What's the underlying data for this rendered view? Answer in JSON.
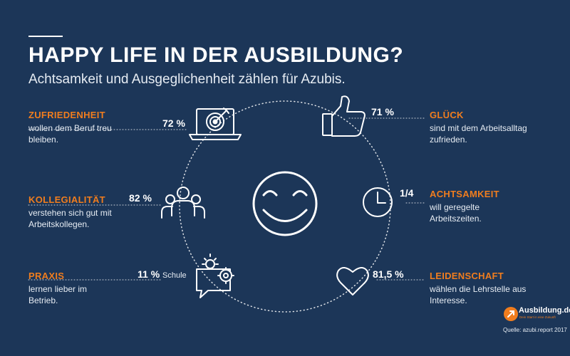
{
  "header": {
    "title": "HAPPY LIFE IN DER AUSBILDUNG?",
    "subtitle": "Achtsamkeit und Ausgeglichenheit zählen für Azubis."
  },
  "stats": [
    {
      "key": "zufriedenheit",
      "heading": "ZUFRIEDENHEIT",
      "description": "wollen dem Beruf treu bleiben.",
      "value": "72 %",
      "icon": "laptop-target-icon"
    },
    {
      "key": "glueck",
      "heading": "GLÜCK",
      "description": "sind mit dem Arbeitsalltag zufrieden.",
      "value": "71 %",
      "icon": "thumbs-up-icon"
    },
    {
      "key": "kollegialitaet",
      "heading": "KOLLEGIALITÄT",
      "description": "verstehen sich gut mit Arbeitskollegen.",
      "value": "82 %",
      "icon": "group-icon"
    },
    {
      "key": "achtsamkeit",
      "heading": "ACHTSAMKEIT",
      "description": "will geregelte Arbeitszeiten.",
      "value": "1/4",
      "icon": "clock-icon"
    },
    {
      "key": "praxis",
      "heading": "PRAXIS",
      "description": "lernen lieber im Betrieb.",
      "value": "11 %",
      "value_note": "Schule",
      "icon": "speech-bubble-idea-icon"
    },
    {
      "key": "leidenschaft",
      "heading": "LEIDENSCHAFT",
      "description": "wählen die Lehrstelle aus Interesse.",
      "value": "81,5 %",
      "icon": "heart-icon"
    }
  ],
  "center_icon": "smiley-face-icon",
  "logo": {
    "name": "Ausbildung.de",
    "slogan": "Dein Start in eine Zukunft"
  },
  "source": "Quelle: azubi.report 2017",
  "colors": {
    "background": "#1c3658",
    "accent": "#f07d1e",
    "text": "#ffffff"
  }
}
